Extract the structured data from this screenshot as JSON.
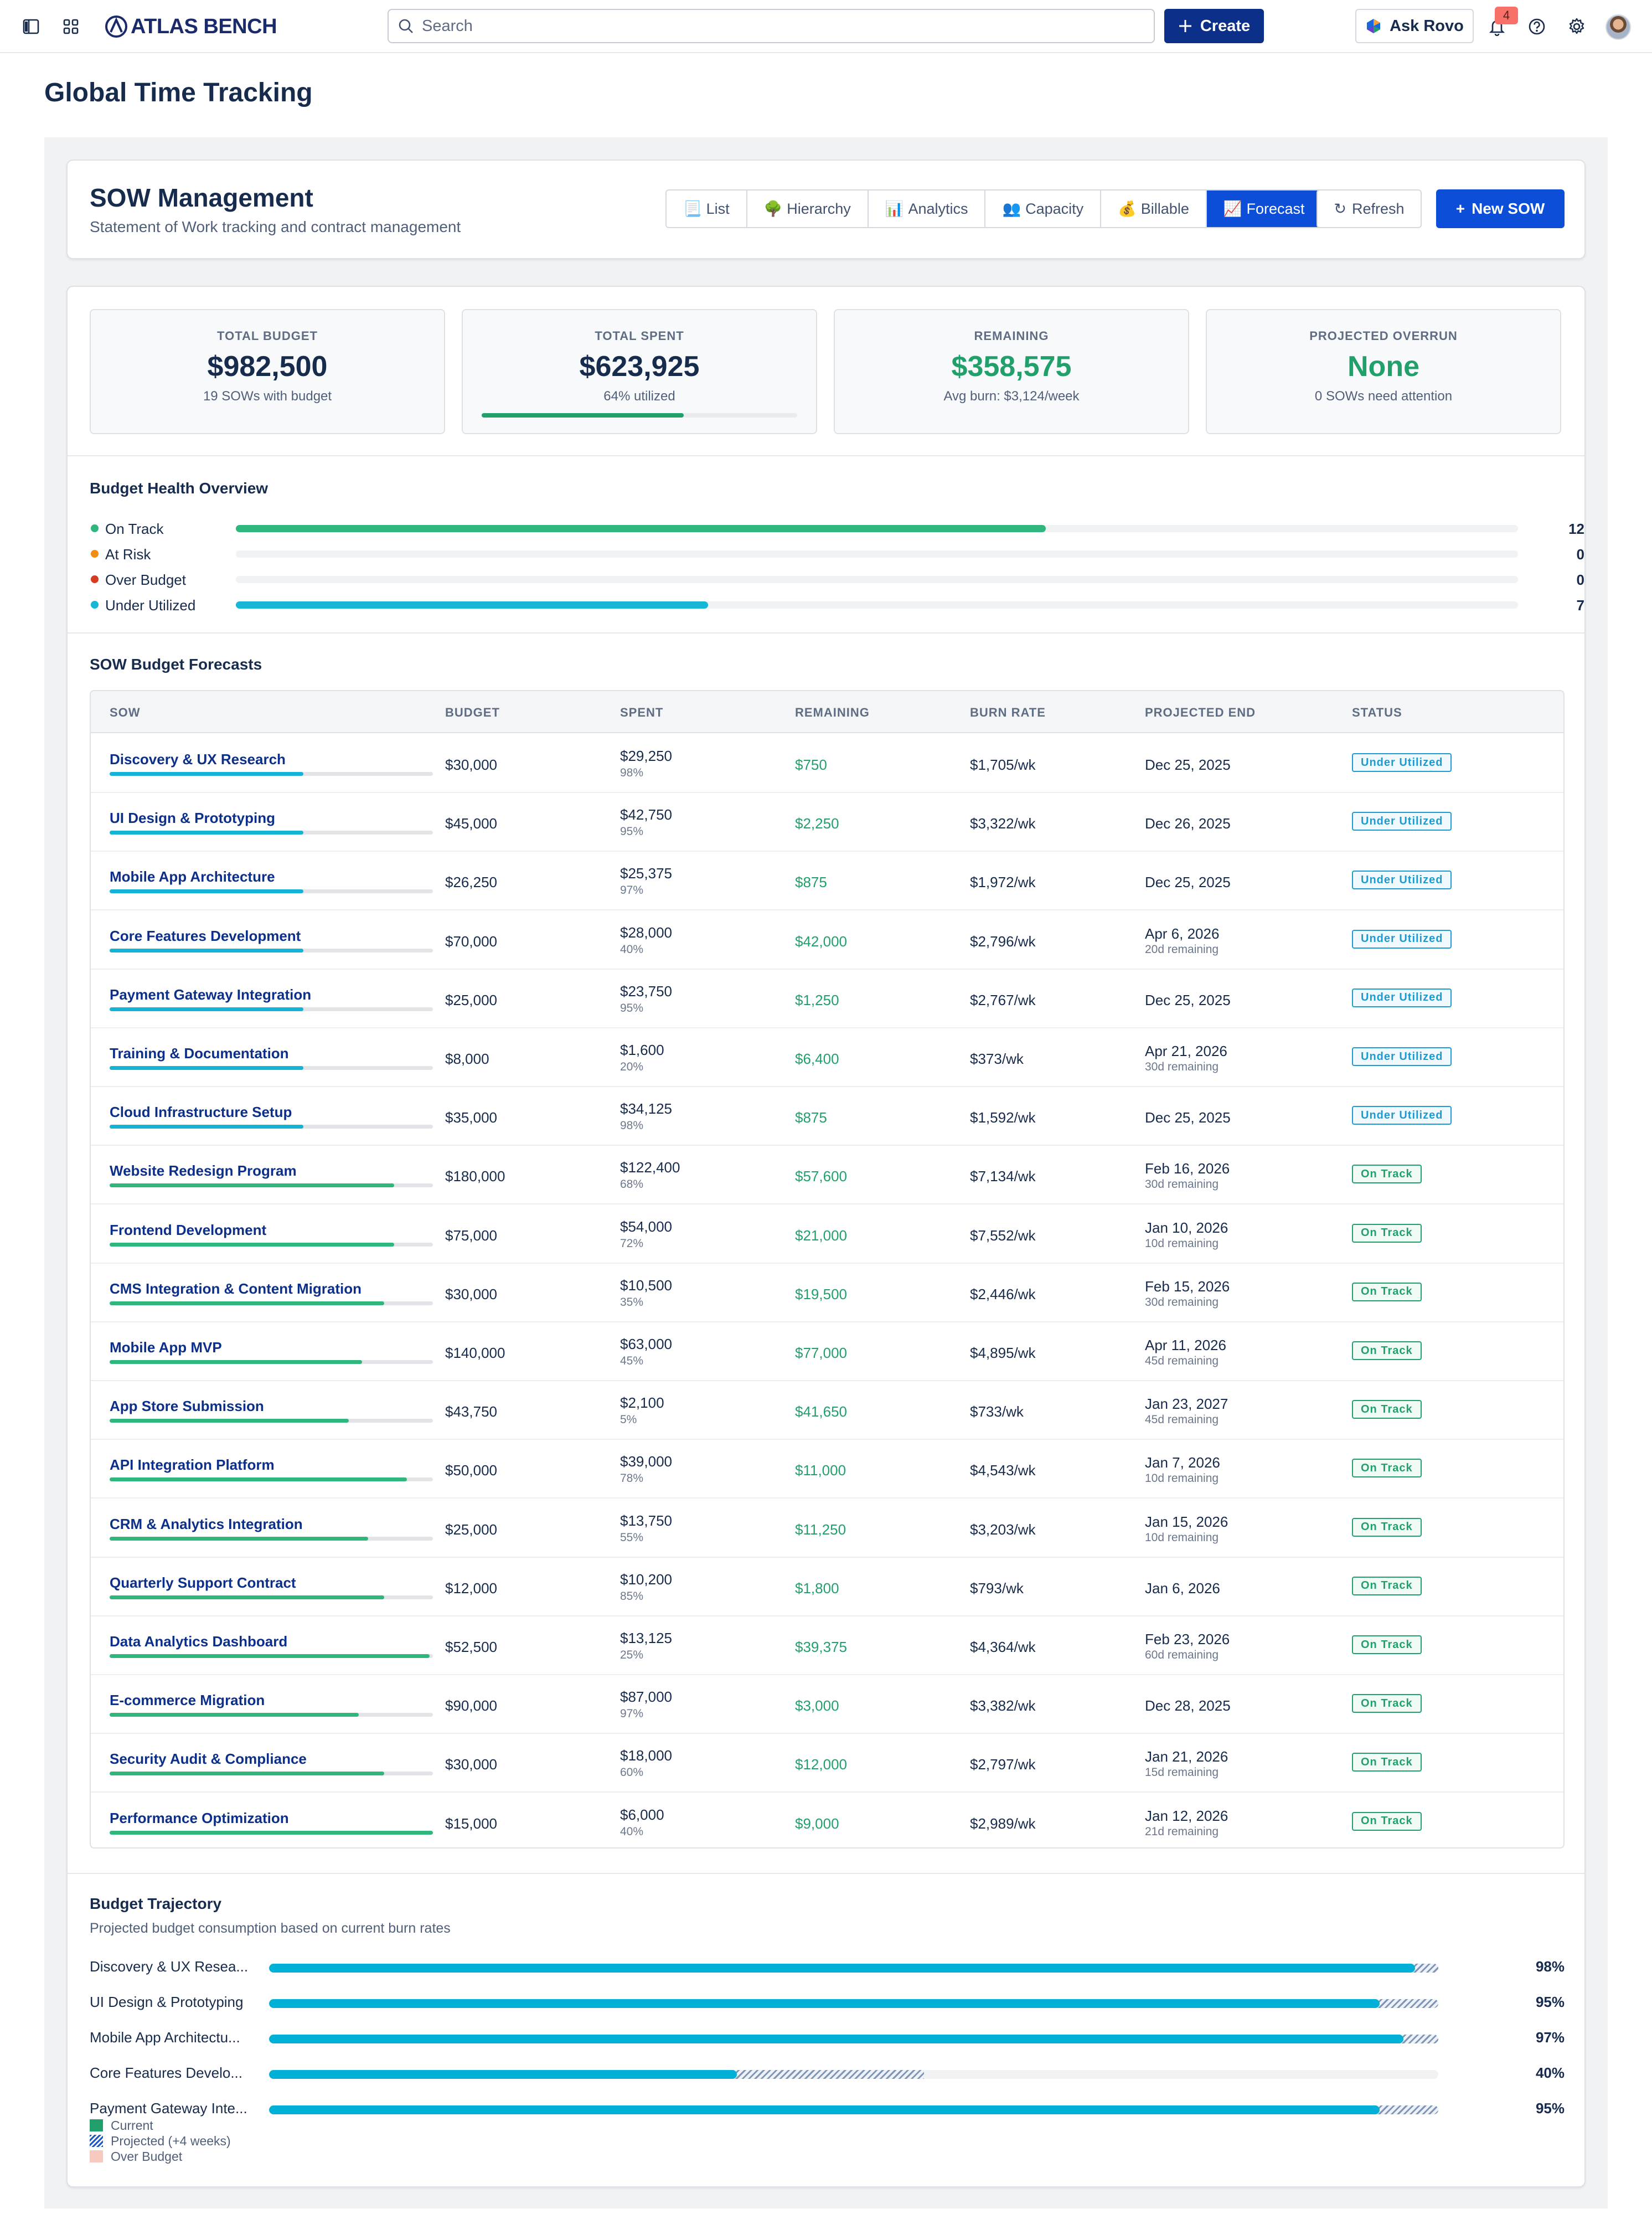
{
  "topbar": {
    "logo": "ATLAS BENCH",
    "search_placeholder": "Search",
    "create_label": "Create",
    "ask_rovo_label": "Ask Rovo",
    "notification_count": "4",
    "icons": [
      "sidebar-toggle-icon",
      "app-grid-icon",
      "search-icon",
      "plus-icon",
      "rovo-icon",
      "bell-icon",
      "help-icon",
      "gear-icon"
    ]
  },
  "page": {
    "title": "Global Time Tracking"
  },
  "header": {
    "title": "SOW Management",
    "subtitle": "Statement of Work tracking and contract management",
    "tabs": [
      {
        "icon": "📃",
        "label": "List"
      },
      {
        "icon": "🌳",
        "label": "Hierarchy"
      },
      {
        "icon": "📊",
        "label": "Analytics"
      },
      {
        "icon": "👥",
        "label": "Capacity"
      },
      {
        "icon": "💰",
        "label": "Billable"
      },
      {
        "icon": "📈",
        "label": "Forecast",
        "active": true
      }
    ],
    "refresh_icon": "↻",
    "refresh_label": "Refresh",
    "new_icon": "+",
    "new_label": "New SOW"
  },
  "stats": [
    {
      "label": "TOTAL BUDGET",
      "value": "$982,500",
      "sub": "19 SOWs with budget",
      "green": false
    },
    {
      "label": "TOTAL SPENT",
      "value": "$623,925",
      "sub": "64% utilized",
      "progress": 64,
      "green": false
    },
    {
      "label": "REMAINING",
      "value": "$358,575",
      "sub": "Avg burn: $3,124/week",
      "green": true
    },
    {
      "label": "PROJECTED OVERRUN",
      "value": "None",
      "sub": "0 SOWs need attention",
      "green": true
    }
  ],
  "health": {
    "title": "Budget Health Overview",
    "total": 19,
    "items": [
      {
        "label": "On Track",
        "count": "12",
        "value": 12,
        "color": "#2fb67c"
      },
      {
        "label": "At Risk",
        "count": "0",
        "value": 0,
        "color": "#f18d13"
      },
      {
        "label": "Over Budget",
        "count": "0",
        "value": 0,
        "color": "#d83b24"
      },
      {
        "label": "Under Utilized",
        "count": "7",
        "value": 7,
        "color": "#16b6d6"
      }
    ]
  },
  "forecasts": {
    "title": "SOW Budget Forecasts",
    "columns": [
      "SOW",
      "BUDGET",
      "SPENT",
      "REMAINING",
      "BURN RATE",
      "PROJECTED END",
      "STATUS"
    ],
    "rows": [
      {
        "name": "Discovery & UX Research",
        "budget": "$30,000",
        "spent": "$29,250",
        "pct": "98%",
        "remaining": "$750",
        "burn": "$1,705/wk",
        "end": "Dec 25, 2025",
        "end_sub": "",
        "status": "Under Utilized",
        "bar": 60
      },
      {
        "name": "UI Design & Prototyping",
        "budget": "$45,000",
        "spent": "$42,750",
        "pct": "95%",
        "remaining": "$2,250",
        "burn": "$3,322/wk",
        "end": "Dec 26, 2025",
        "end_sub": "",
        "status": "Under Utilized",
        "bar": 60
      },
      {
        "name": "Mobile App Architecture",
        "budget": "$26,250",
        "spent": "$25,375",
        "pct": "97%",
        "remaining": "$875",
        "burn": "$1,972/wk",
        "end": "Dec 25, 2025",
        "end_sub": "",
        "status": "Under Utilized",
        "bar": 60
      },
      {
        "name": "Core Features Development",
        "budget": "$70,000",
        "spent": "$28,000",
        "pct": "40%",
        "remaining": "$42,000",
        "burn": "$2,796/wk",
        "end": "Apr 6, 2026",
        "end_sub": "20d remaining",
        "status": "Under Utilized",
        "bar": 60
      },
      {
        "name": "Payment Gateway Integration",
        "budget": "$25,000",
        "spent": "$23,750",
        "pct": "95%",
        "remaining": "$1,250",
        "burn": "$2,767/wk",
        "end": "Dec 25, 2025",
        "end_sub": "",
        "status": "Under Utilized",
        "bar": 60
      },
      {
        "name": "Training & Documentation",
        "budget": "$8,000",
        "spent": "$1,600",
        "pct": "20%",
        "remaining": "$6,400",
        "burn": "$373/wk",
        "end": "Apr 21, 2026",
        "end_sub": "30d remaining",
        "status": "Under Utilized",
        "bar": 60
      },
      {
        "name": "Cloud Infrastructure Setup",
        "budget": "$35,000",
        "spent": "$34,125",
        "pct": "98%",
        "remaining": "$875",
        "burn": "$1,592/wk",
        "end": "Dec 25, 2025",
        "end_sub": "",
        "status": "Under Utilized",
        "bar": 60
      },
      {
        "name": "Website Redesign Program",
        "budget": "$180,000",
        "spent": "$122,400",
        "pct": "68%",
        "remaining": "$57,600",
        "burn": "$7,134/wk",
        "end": "Feb 16, 2026",
        "end_sub": "30d remaining",
        "status": "On Track",
        "bar": 88
      },
      {
        "name": "Frontend Development",
        "budget": "$75,000",
        "spent": "$54,000",
        "pct": "72%",
        "remaining": "$21,000",
        "burn": "$7,552/wk",
        "end": "Jan 10, 2026",
        "end_sub": "10d remaining",
        "status": "On Track",
        "bar": 88
      },
      {
        "name": "CMS Integration & Content Migration",
        "budget": "$30,000",
        "spent": "$10,500",
        "pct": "35%",
        "remaining": "$19,500",
        "burn": "$2,446/wk",
        "end": "Feb 15, 2026",
        "end_sub": "30d remaining",
        "status": "On Track",
        "bar": 85
      },
      {
        "name": "Mobile App MVP",
        "budget": "$140,000",
        "spent": "$63,000",
        "pct": "45%",
        "remaining": "$77,000",
        "burn": "$4,895/wk",
        "end": "Apr 11, 2026",
        "end_sub": "45d remaining",
        "status": "On Track",
        "bar": 78
      },
      {
        "name": "App Store Submission",
        "budget": "$43,750",
        "spent": "$2,100",
        "pct": "5%",
        "remaining": "$41,650",
        "burn": "$733/wk",
        "end": "Jan 23, 2027",
        "end_sub": "45d remaining",
        "status": "On Track",
        "bar": 74
      },
      {
        "name": "API Integration Platform",
        "budget": "$50,000",
        "spent": "$39,000",
        "pct": "78%",
        "remaining": "$11,000",
        "burn": "$4,543/wk",
        "end": "Jan 7, 2026",
        "end_sub": "10d remaining",
        "status": "On Track",
        "bar": 92
      },
      {
        "name": "CRM & Analytics Integration",
        "budget": "$25,000",
        "spent": "$13,750",
        "pct": "55%",
        "remaining": "$11,250",
        "burn": "$3,203/wk",
        "end": "Jan 15, 2026",
        "end_sub": "10d remaining",
        "status": "On Track",
        "bar": 80
      },
      {
        "name": "Quarterly Support Contract",
        "budget": "$12,000",
        "spent": "$10,200",
        "pct": "85%",
        "remaining": "$1,800",
        "burn": "$793/wk",
        "end": "Jan 6, 2026",
        "end_sub": "",
        "status": "On Track",
        "bar": 85
      },
      {
        "name": "Data Analytics Dashboard",
        "budget": "$52,500",
        "spent": "$13,125",
        "pct": "25%",
        "remaining": "$39,375",
        "burn": "$4,364/wk",
        "end": "Feb 23, 2026",
        "end_sub": "60d remaining",
        "status": "On Track",
        "bar": 99
      },
      {
        "name": "E-commerce Migration",
        "budget": "$90,000",
        "spent": "$87,000",
        "pct": "97%",
        "remaining": "$3,000",
        "burn": "$3,382/wk",
        "end": "Dec 28, 2025",
        "end_sub": "",
        "status": "On Track",
        "bar": 77
      },
      {
        "name": "Security Audit & Compliance",
        "budget": "$30,000",
        "spent": "$18,000",
        "pct": "60%",
        "remaining": "$12,000",
        "burn": "$2,797/wk",
        "end": "Jan 21, 2026",
        "end_sub": "15d remaining",
        "status": "On Track",
        "bar": 85
      },
      {
        "name": "Performance Optimization",
        "budget": "$15,000",
        "spent": "$6,000",
        "pct": "40%",
        "remaining": "$9,000",
        "burn": "$2,989/wk",
        "end": "Jan 12, 2026",
        "end_sub": "21d remaining",
        "status": "On Track",
        "bar": 100
      }
    ]
  },
  "trajectory": {
    "title": "Budget Trajectory",
    "subtitle": "Projected budget consumption based on current burn rates",
    "rows": [
      {
        "label": "Discovery & UX Resea...",
        "current": 98,
        "projected": 100,
        "pct": "98%"
      },
      {
        "label": "UI Design & Prototyping",
        "current": 95,
        "projected": 100,
        "pct": "95%"
      },
      {
        "label": "Mobile App Architectu...",
        "current": 97,
        "projected": 100,
        "pct": "97%"
      },
      {
        "label": "Core Features Develo...",
        "current": 40,
        "projected": 56,
        "pct": "40%"
      },
      {
        "label": "Payment Gateway Inte...",
        "current": 95,
        "projected": 100,
        "pct": "95%"
      }
    ],
    "legend": [
      {
        "label": "Current",
        "color": "#22a06b"
      },
      {
        "label": "Projected (+4 weeks)",
        "color": "#1f57c3"
      },
      {
        "label": "Over Budget",
        "color": "#f8c9bf"
      }
    ]
  }
}
